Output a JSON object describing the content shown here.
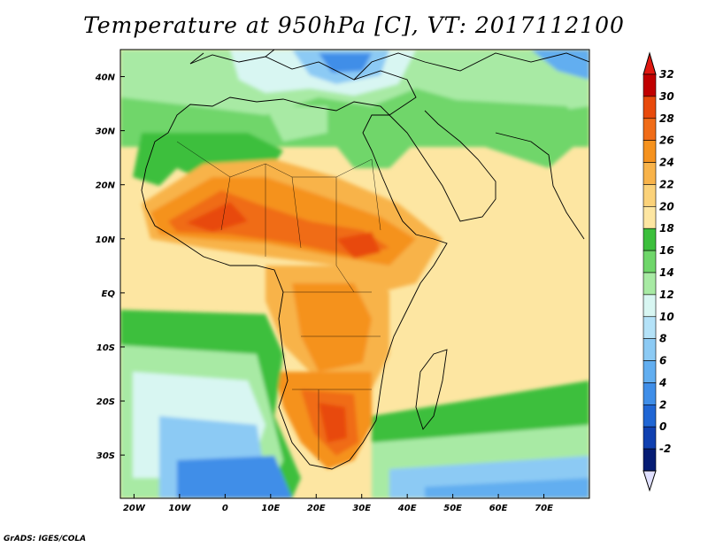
{
  "title": "Temperature at 950hPa [C], VT: 2017112100",
  "footer": "GrADS: IGES/COLA",
  "map": {
    "variable": "Temperature at 950hPa",
    "unit": "C",
    "valid_time": "2017112100",
    "lon_range": [
      -23,
      80
    ],
    "lat_range": [
      -38,
      45
    ],
    "lon_ticks": [
      {
        "lon": -20,
        "label": "20W"
      },
      {
        "lon": -10,
        "label": "10W"
      },
      {
        "lon": 0,
        "label": "0"
      },
      {
        "lon": 10,
        "label": "10E"
      },
      {
        "lon": 20,
        "label": "20E"
      },
      {
        "lon": 30,
        "label": "30E"
      },
      {
        "lon": 40,
        "label": "40E"
      },
      {
        "lon": 50,
        "label": "50E"
      },
      {
        "lon": 60,
        "label": "60E"
      },
      {
        "lon": 70,
        "label": "70E"
      }
    ],
    "lat_ticks": [
      {
        "lat": 40,
        "label": "40N"
      },
      {
        "lat": 30,
        "label": "30N"
      },
      {
        "lat": 20,
        "label": "20N"
      },
      {
        "lat": 10,
        "label": "10N"
      },
      {
        "lat": 0,
        "label": "EQ"
      },
      {
        "lat": -10,
        "label": "10S"
      },
      {
        "lat": -20,
        "label": "20S"
      },
      {
        "lat": -30,
        "label": "30S"
      }
    ]
  },
  "colorbar": {
    "levels": [
      {
        "label": "32",
        "color": "#c00000"
      },
      {
        "label": "30",
        "color": "#e84a0c"
      },
      {
        "label": "28",
        "color": "#f06c18"
      },
      {
        "label": "26",
        "color": "#f5921e"
      },
      {
        "label": "24",
        "color": "#f8b34a"
      },
      {
        "label": "22",
        "color": "#fbd27a"
      },
      {
        "label": "20",
        "color": "#fde6a2"
      },
      {
        "label": "18",
        "color": "#3cbf3c"
      },
      {
        "label": "16",
        "color": "#6fd66a"
      },
      {
        "label": "14",
        "color": "#a8eaa4"
      },
      {
        "label": "12",
        "color": "#d8f6f2"
      },
      {
        "label": "10",
        "color": "#b4e2f8"
      },
      {
        "label": "8",
        "color": "#8ccaf4"
      },
      {
        "label": "6",
        "color": "#62aef0"
      },
      {
        "label": "4",
        "color": "#3f8ee8"
      },
      {
        "label": "2",
        "color": "#2066d4"
      },
      {
        "label": "0",
        "color": "#1040b0"
      },
      {
        "label": "-2",
        "color": "#061c74"
      }
    ],
    "top_color": "#e01810",
    "bottom_color": "#e0e0ff"
  }
}
